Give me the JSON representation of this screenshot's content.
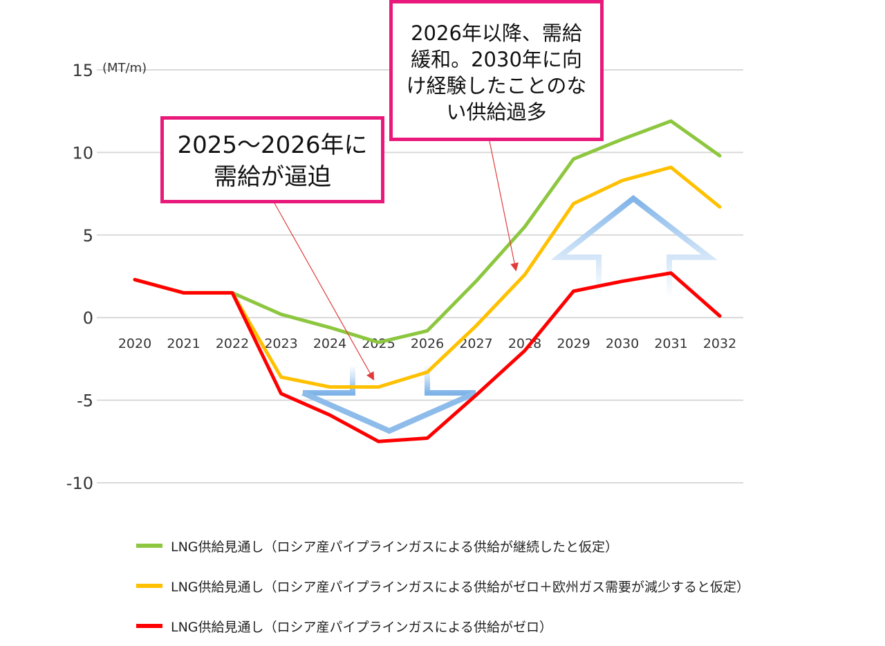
{
  "chart_data": {
    "type": "line",
    "unit_label": "(MT/m)",
    "categories": [
      "2020",
      "2021",
      "2022",
      "2023",
      "2024",
      "2025",
      "2026",
      "2027",
      "2028",
      "2029",
      "2030",
      "2031",
      "2032"
    ],
    "ylim": [
      -10,
      15
    ],
    "yticks": [
      "15",
      "10",
      "5",
      "0",
      "-5",
      "-10"
    ],
    "grid": true,
    "legend_position": "bottom",
    "series": [
      {
        "name": "LNG供給見通し（ロシア産パイプラインガスによる供給が継続したと仮定）",
        "color": "#8dc63f",
        "values": [
          2.3,
          1.5,
          1.5,
          0.2,
          -0.6,
          -1.5,
          -0.8,
          2.2,
          5.5,
          9.6,
          10.8,
          11.9,
          9.8
        ]
      },
      {
        "name": "LNG供給見通し（ロシア産パイプラインガスによる供給がゼロ＋欧州ガス需要が減少すると仮定）",
        "color": "#ffc000",
        "values": [
          2.3,
          1.5,
          1.5,
          -3.6,
          -4.2,
          -4.2,
          -3.3,
          -0.5,
          2.6,
          6.9,
          8.3,
          9.1,
          6.7
        ]
      },
      {
        "name": "LNG供給見通し（ロシア産パイプラインガスによる供給がゼロ）",
        "color": "#ff0000",
        "values": [
          2.3,
          1.5,
          1.5,
          -4.6,
          -5.9,
          -7.5,
          -7.3,
          -4.7,
          -2.0,
          1.6,
          2.2,
          2.7,
          0.1
        ]
      }
    ],
    "annotations": [
      {
        "lines": [
          "2025～2026年に",
          "需給が逼迫"
        ]
      },
      {
        "lines": [
          "2026年以降、需給",
          "緩和。2030年に向",
          "け経験したことのな",
          "い供給過多"
        ]
      }
    ]
  }
}
